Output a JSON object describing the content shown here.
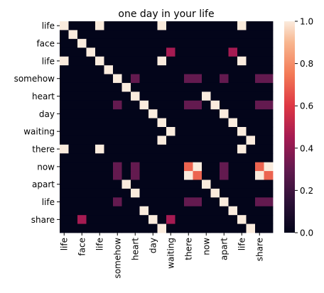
{
  "chart_data": {
    "type": "heatmap",
    "title": "one day in your life",
    "rows": [
      "life",
      "",
      "face",
      "",
      "life",
      "",
      "somehow",
      "",
      "heart",
      "",
      "day",
      "",
      "waiting",
      "",
      "there",
      "",
      "now",
      "",
      "apart",
      "",
      "life",
      "",
      "share",
      ""
    ],
    "cols": [
      "life",
      "",
      "face",
      "",
      "life",
      "",
      "somehow",
      "",
      "heart",
      "",
      "day",
      "",
      "waiting",
      "",
      "there",
      "",
      "now",
      "",
      "apart",
      "",
      "life",
      "",
      "share",
      ""
    ],
    "values": [
      [
        1,
        0,
        0,
        0,
        1,
        0,
        0,
        0,
        0,
        0,
        0,
        1,
        0,
        0,
        0,
        0,
        0,
        0,
        0,
        0,
        1,
        0,
        0,
        0
      ],
      [
        0,
        1,
        0,
        0,
        0,
        0,
        0,
        0,
        0,
        0,
        0,
        0,
        0,
        0,
        0,
        0,
        0,
        0,
        0,
        0,
        0,
        0,
        0,
        0
      ],
      [
        0,
        0,
        1,
        0,
        0,
        0,
        0,
        0,
        0,
        0,
        0,
        0,
        0,
        0,
        0,
        0,
        0,
        0,
        0,
        0,
        0,
        0,
        0,
        0
      ],
      [
        0,
        0,
        0,
        1,
        0,
        0,
        0,
        0,
        0,
        0,
        0,
        0,
        0.45,
        0,
        0,
        0,
        0,
        0,
        0,
        0.45,
        0,
        0,
        0,
        0
      ],
      [
        1,
        0,
        0,
        0,
        1,
        0,
        0,
        0,
        0,
        0,
        0,
        1,
        0,
        0,
        0,
        0,
        0,
        0,
        0,
        0,
        1,
        0,
        0,
        0
      ],
      [
        0,
        0,
        0,
        0,
        0,
        1,
        0,
        0,
        0,
        0,
        0,
        0,
        0,
        0,
        0,
        0,
        0,
        0,
        0,
        0,
        0,
        0,
        0,
        0
      ],
      [
        0,
        0,
        0,
        0,
        0,
        0,
        1,
        0,
        0.3,
        0,
        0,
        0,
        0,
        0,
        0.3,
        0.3,
        0,
        0,
        0.3,
        0,
        0,
        0,
        0.3,
        0.3
      ],
      [
        0,
        0,
        0,
        0,
        0,
        0,
        0,
        1,
        0,
        0,
        0,
        0,
        0,
        0,
        0,
        0,
        0,
        0,
        0,
        0,
        0,
        0,
        0,
        0
      ],
      [
        0,
        0,
        0,
        0,
        0,
        0,
        0,
        0,
        1,
        0,
        0,
        0,
        0,
        0,
        0,
        0,
        1,
        0,
        0,
        0,
        0,
        0,
        0,
        0
      ],
      [
        0,
        0,
        0,
        0,
        0,
        0,
        0.3,
        0,
        0,
        1,
        0,
        0,
        0,
        0,
        0.3,
        0.3,
        0,
        1,
        0,
        0,
        0,
        0,
        0.3,
        0.3
      ],
      [
        0,
        0,
        0,
        0,
        0,
        0,
        0,
        0,
        0,
        0,
        1,
        0,
        0,
        0,
        0,
        0,
        0,
        0,
        1,
        0,
        0,
        0,
        0,
        0
      ],
      [
        0,
        0,
        0,
        0,
        0,
        0,
        0,
        0,
        0,
        0,
        0,
        1,
        0,
        0,
        0,
        0,
        0,
        0,
        0,
        1,
        0,
        0,
        0,
        0
      ],
      [
        0,
        0,
        0,
        0,
        0,
        0,
        0,
        0,
        0,
        0,
        0,
        0,
        1,
        0,
        0,
        0,
        0,
        0,
        0,
        0,
        1,
        0,
        0,
        0
      ],
      [
        0,
        0,
        0,
        0,
        0,
        0,
        0,
        0,
        0,
        0,
        0,
        1,
        0,
        0,
        0,
        0,
        0,
        0,
        0,
        0,
        0,
        1,
        0,
        0
      ],
      [
        1,
        0,
        0,
        0,
        1,
        0,
        0,
        0,
        0,
        0,
        0,
        0,
        0,
        0,
        0,
        0,
        0,
        0,
        0,
        0,
        1,
        0,
        0,
        0
      ],
      [
        0,
        0,
        0,
        0,
        0,
        0,
        0,
        0,
        0,
        0,
        0,
        0,
        0,
        0,
        0,
        0,
        0,
        0,
        0,
        0,
        0,
        0,
        0,
        0
      ],
      [
        0,
        0,
        0,
        0,
        0,
        0,
        0.3,
        0,
        0.3,
        0,
        0,
        0,
        0,
        0,
        0.7,
        1,
        0,
        0,
        0.3,
        0,
        0,
        0,
        0.7,
        1
      ],
      [
        0,
        0,
        0,
        0,
        0,
        0,
        0.3,
        0,
        0.3,
        0,
        0,
        0,
        0,
        0,
        1,
        0.7,
        0,
        0,
        0.3,
        0,
        0,
        0,
        1,
        0.7
      ],
      [
        0,
        0,
        0,
        0,
        0,
        0,
        0,
        1,
        0,
        0,
        0,
        0,
        0,
        0,
        0,
        0,
        1,
        0,
        0,
        0,
        0,
        0,
        0,
        0
      ],
      [
        0,
        0,
        0,
        0,
        0,
        0,
        0,
        0,
        1,
        0,
        0,
        0,
        0,
        0,
        0,
        0,
        0,
        1,
        0,
        0,
        0,
        0,
        0,
        0
      ],
      [
        0,
        0,
        0,
        0,
        0,
        0,
        0.3,
        0,
        0,
        0,
        0,
        0,
        0,
        0,
        0.3,
        0.3,
        0,
        0,
        1,
        0,
        0,
        0,
        0.3,
        0.3
      ],
      [
        0,
        0,
        0,
        0,
        0,
        0,
        0,
        0,
        0,
        1,
        0,
        0,
        0,
        0,
        0,
        0,
        0,
        0,
        0,
        1,
        0,
        0,
        0,
        0
      ],
      [
        0,
        0,
        0.45,
        0,
        0,
        0,
        0,
        0,
        0,
        0,
        1,
        0,
        0.45,
        0,
        0,
        0,
        0,
        0,
        0,
        0,
        1,
        0,
        0,
        0
      ],
      [
        0,
        0,
        0,
        0,
        0,
        0,
        0,
        0,
        0,
        0,
        0,
        1,
        0,
        0,
        0,
        0,
        0,
        0,
        0,
        0,
        0,
        1,
        0,
        0
      ]
    ],
    "colorbar": {
      "min": 0,
      "max": 1,
      "ticks": [
        "0.0",
        "0.2",
        "0.4",
        "0.6",
        "0.8",
        "1.0"
      ]
    }
  }
}
